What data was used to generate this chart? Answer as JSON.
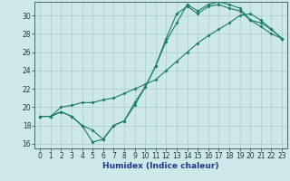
{
  "title": "",
  "xlabel": "Humidex (Indice chaleur)",
  "bg_color": "#cce8e8",
  "grid_color": "#aacccc",
  "line_color": "#1a7a6a",
  "xlim": [
    -0.5,
    23.5
  ],
  "ylim": [
    15.5,
    31.5
  ],
  "yticks": [
    16,
    18,
    20,
    22,
    24,
    26,
    28,
    30
  ],
  "xticks": [
    0,
    1,
    2,
    3,
    4,
    5,
    6,
    7,
    8,
    9,
    10,
    11,
    12,
    13,
    14,
    15,
    16,
    17,
    18,
    19,
    20,
    21,
    22,
    23
  ],
  "line1_x": [
    0,
    1,
    2,
    3,
    4,
    5,
    6,
    7,
    8,
    9,
    10,
    11,
    12,
    13,
    14,
    15,
    16,
    17,
    18,
    19,
    20,
    21,
    22,
    23
  ],
  "line1_y": [
    19.0,
    19.0,
    19.5,
    19.0,
    18.0,
    16.2,
    16.5,
    18.0,
    18.5,
    20.2,
    22.2,
    24.5,
    27.2,
    29.2,
    31.2,
    30.5,
    31.2,
    31.5,
    31.2,
    30.8,
    29.5,
    29.2,
    28.5,
    27.5
  ],
  "line2_x": [
    0,
    1,
    2,
    3,
    4,
    5,
    6,
    7,
    8,
    9,
    10,
    11,
    12,
    13,
    14,
    15,
    16,
    17,
    18,
    19,
    20,
    21,
    22,
    23
  ],
  "line2_y": [
    19.0,
    19.0,
    20.0,
    20.2,
    20.5,
    20.5,
    20.8,
    21.0,
    21.5,
    22.0,
    22.5,
    23.0,
    24.0,
    25.0,
    26.0,
    27.0,
    27.8,
    28.5,
    29.2,
    30.0,
    30.2,
    29.5,
    28.5,
    27.5
  ],
  "line3_x": [
    0,
    1,
    2,
    3,
    4,
    5,
    6,
    7,
    8,
    9,
    10,
    11,
    12,
    13,
    14,
    15,
    16,
    17,
    18,
    19,
    20,
    21,
    22,
    23
  ],
  "line3_y": [
    19.0,
    19.0,
    19.5,
    19.0,
    18.0,
    17.5,
    16.5,
    18.0,
    18.5,
    20.5,
    22.2,
    24.5,
    27.5,
    30.2,
    31.0,
    30.2,
    31.0,
    31.2,
    30.8,
    30.5,
    29.5,
    28.8,
    28.0,
    27.5
  ],
  "tick_fontsize": 5.5,
  "xlabel_fontsize": 6.5,
  "marker_size": 2.0,
  "line_width": 0.8
}
